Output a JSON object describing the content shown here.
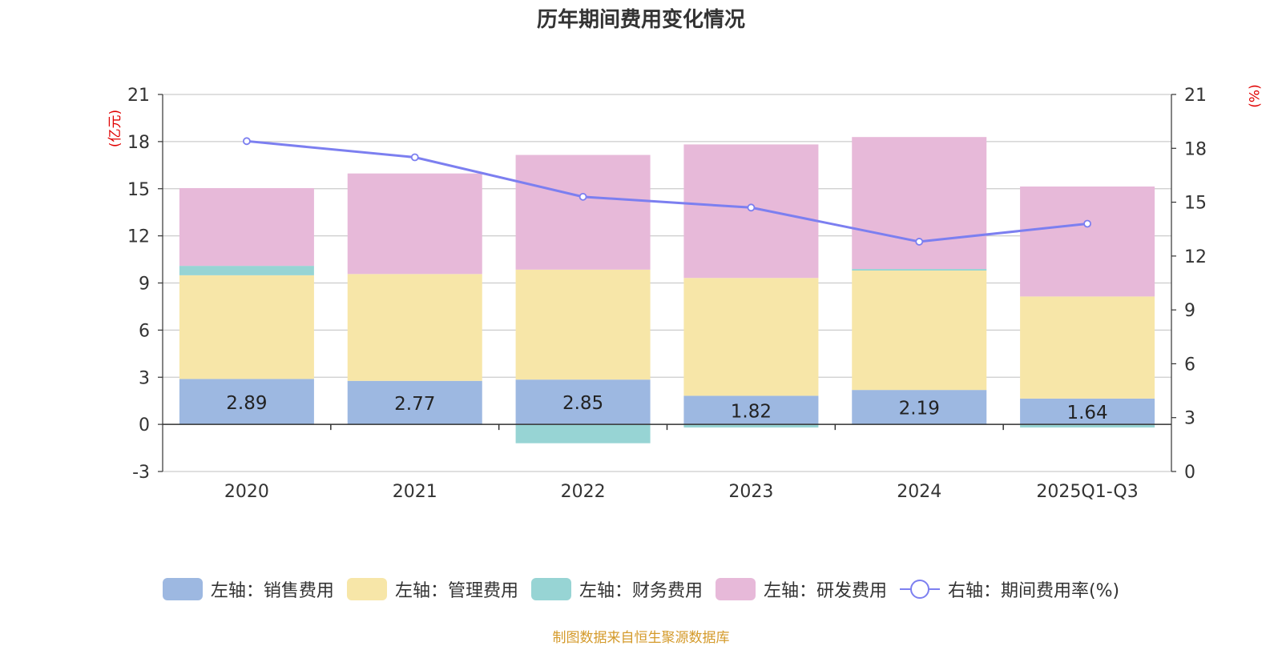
{
  "chart_data": {
    "type": "bar",
    "title": "历年期间费用变化情况",
    "left_unit": "(亿元)",
    "right_unit": "(%)",
    "categories": [
      "2020",
      "2021",
      "2022",
      "2023",
      "2024",
      "2025Q1-Q3"
    ],
    "left_axis": {
      "min": -3,
      "max": 21,
      "ticks": [
        -3,
        0,
        3,
        6,
        9,
        12,
        15,
        18,
        21
      ]
    },
    "right_axis": {
      "min": 0,
      "max": 21,
      "ticks": [
        0,
        3,
        6,
        9,
        12,
        15,
        18,
        21
      ]
    },
    "series": [
      {
        "name": "左轴：销售费用",
        "kind": "bar",
        "color": "#9db8e1",
        "values": [
          2.89,
          2.77,
          2.85,
          1.82,
          2.19,
          1.64
        ],
        "labels": [
          "2.89",
          "2.77",
          "2.85",
          "1.82",
          "2.19",
          "1.64"
        ]
      },
      {
        "name": "左轴：管理费用",
        "kind": "bar",
        "color": "#f7e6a8",
        "values": [
          6.6,
          6.8,
          7.0,
          7.5,
          7.6,
          6.5
        ]
      },
      {
        "name": "左轴：财务费用",
        "kind": "bar",
        "color": "#97d4d4",
        "values": [
          0.6,
          0.0,
          -1.2,
          -0.2,
          0.1,
          -0.2
        ]
      },
      {
        "name": "左轴：研发费用",
        "kind": "bar",
        "color": "#e7b9d9",
        "values": [
          4.95,
          6.4,
          7.3,
          8.5,
          8.4,
          7.0
        ]
      },
      {
        "name": "右轴：期间费用率(%)",
        "kind": "line",
        "color": "#7c7ff0",
        "values": [
          18.4,
          17.5,
          15.3,
          14.7,
          12.8,
          13.8
        ]
      }
    ]
  },
  "legend": [
    {
      "label": "左轴：销售费用",
      "color": "#9db8e1"
    },
    {
      "label": "左轴：管理费用",
      "color": "#f7e6a8"
    },
    {
      "label": "左轴：财务费用",
      "color": "#97d4d4"
    },
    {
      "label": "左轴：研发费用",
      "color": "#e7b9d9"
    },
    {
      "label": "右轴：期间费用率(%)",
      "color": "#7c7ff0"
    }
  ],
  "source": "制图数据来自恒生聚源数据库"
}
